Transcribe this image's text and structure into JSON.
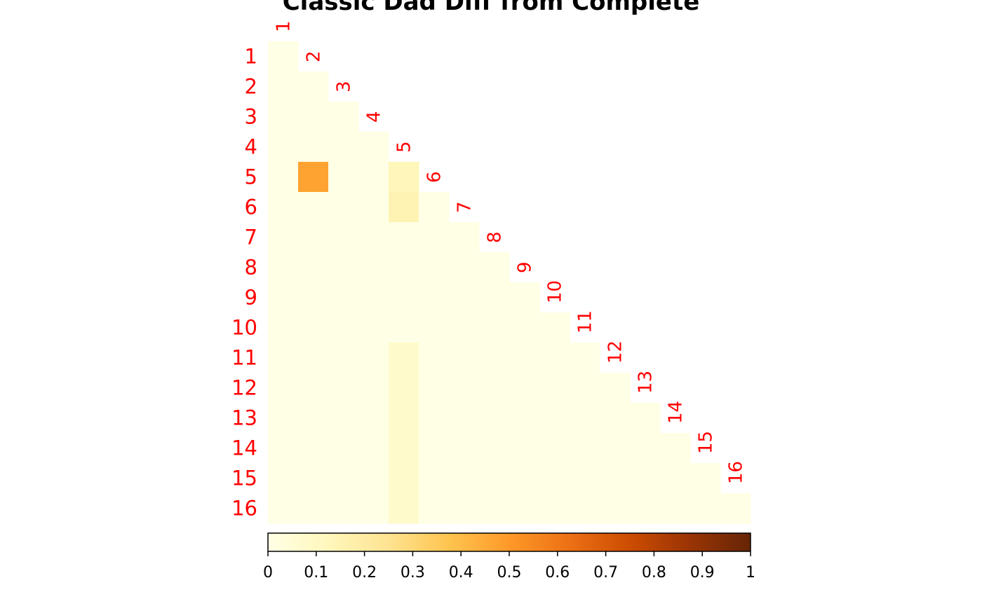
{
  "chart_data": {
    "type": "heatmap",
    "title": "Classic Dad Diff from Complete",
    "row_labels": [
      "1",
      "2",
      "3",
      "4",
      "5",
      "6",
      "7",
      "8",
      "9",
      "10",
      "11",
      "12",
      "13",
      "14",
      "15",
      "16"
    ],
    "col_labels": [
      "1",
      "2",
      "3",
      "4",
      "5",
      "6",
      "7",
      "8",
      "9",
      "10",
      "11",
      "12",
      "13",
      "14",
      "15",
      "16"
    ],
    "layout": "lower-triangle",
    "default_value": 0,
    "cells": [
      {
        "row": 5,
        "col": 2,
        "value": 0.47
      },
      {
        "row": 5,
        "col": 5,
        "value": 0.13
      },
      {
        "row": 6,
        "col": 5,
        "value": 0.15
      },
      {
        "row": 11,
        "col": 5,
        "value": 0.08
      },
      {
        "row": 12,
        "col": 5,
        "value": 0.08
      },
      {
        "row": 13,
        "col": 5,
        "value": 0.08
      },
      {
        "row": 14,
        "col": 5,
        "value": 0.08
      },
      {
        "row": 15,
        "col": 5,
        "value": 0.08
      },
      {
        "row": 16,
        "col": 5,
        "value": 0.08
      }
    ],
    "colorbar": {
      "ticks": [
        "0",
        "0.1",
        "0.2",
        "0.3",
        "0.4",
        "0.5",
        "0.6",
        "0.7",
        "0.8",
        "0.9",
        "1"
      ],
      "range": [
        0,
        1
      ],
      "colors": [
        "#ffffe5",
        "#fff7bc",
        "#fee391",
        "#fec44f",
        "#fe9929",
        "#ec7014",
        "#cc4c02",
        "#993404",
        "#662506"
      ]
    },
    "label_color": "#ff0000"
  }
}
